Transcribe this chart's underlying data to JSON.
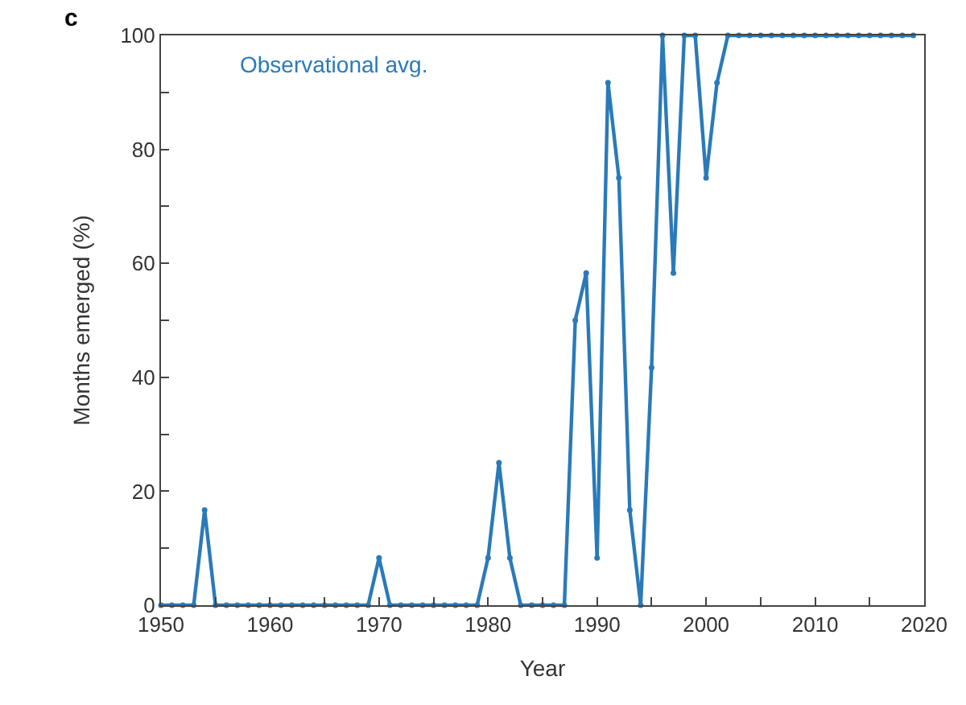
{
  "chart_data": {
    "type": "line",
    "xlabel": "Year",
    "ylabel": "Months emerged (%)",
    "annotations": [
      "c"
    ],
    "x": [
      1950,
      1951,
      1952,
      1953,
      1954,
      1955,
      1956,
      1957,
      1958,
      1959,
      1960,
      1961,
      1962,
      1963,
      1964,
      1965,
      1966,
      1967,
      1968,
      1969,
      1970,
      1971,
      1972,
      1973,
      1974,
      1975,
      1976,
      1977,
      1978,
      1979,
      1980,
      1981,
      1982,
      1983,
      1984,
      1985,
      1986,
      1987,
      1988,
      1989,
      1990,
      1991,
      1992,
      1993,
      1994,
      1995,
      1996,
      1997,
      1998,
      1999,
      2000,
      2001,
      2002,
      2003,
      2004,
      2005,
      2006,
      2007,
      2008,
      2009,
      2010,
      2011,
      2012,
      2013,
      2014,
      2015,
      2016,
      2017,
      2018,
      2019
    ],
    "series": [
      {
        "name": "Observational avg.",
        "color": "#2a7ab9",
        "values": [
          0,
          0,
          0,
          0,
          16.7,
          0,
          0,
          0,
          0,
          0,
          0,
          0,
          0,
          0,
          0,
          0,
          0,
          0,
          0,
          0,
          8.3,
          0,
          0,
          0,
          0,
          0,
          0,
          0,
          0,
          0,
          8.3,
          25,
          8.3,
          0,
          0,
          0,
          0,
          0,
          50,
          58.3,
          8.3,
          91.7,
          75,
          16.7,
          0,
          41.7,
          100,
          58.3,
          100,
          100,
          75,
          91.7,
          100,
          100,
          100,
          100,
          100,
          100,
          100,
          100,
          100,
          100,
          100,
          100,
          100,
          100,
          100,
          100,
          100,
          100
        ]
      }
    ],
    "xlim": [
      1950,
      2020
    ],
    "ylim": [
      0,
      100
    ],
    "xticks": [
      1950,
      {
        "value": 1955,
        "label": null
      },
      1960,
      {
        "value": 1965,
        "label": null
      },
      1970,
      {
        "value": 1975,
        "label": null
      },
      1980,
      {
        "value": 1985,
        "label": null
      },
      1990,
      {
        "value": 1995,
        "label": null
      },
      2000,
      {
        "value": 2005,
        "label": null
      },
      2010,
      {
        "value": 2015,
        "label": null
      },
      2020
    ],
    "yticks": [
      0,
      {
        "value": 10,
        "label": null
      },
      20,
      {
        "value": 30,
        "label": null
      },
      40,
      {
        "value": 50,
        "label": null
      },
      60,
      {
        "value": 70,
        "label": null
      },
      80,
      {
        "value": 90,
        "label": null
      },
      100
    ],
    "legend": false,
    "marker": "circle",
    "line_style": "solid"
  }
}
